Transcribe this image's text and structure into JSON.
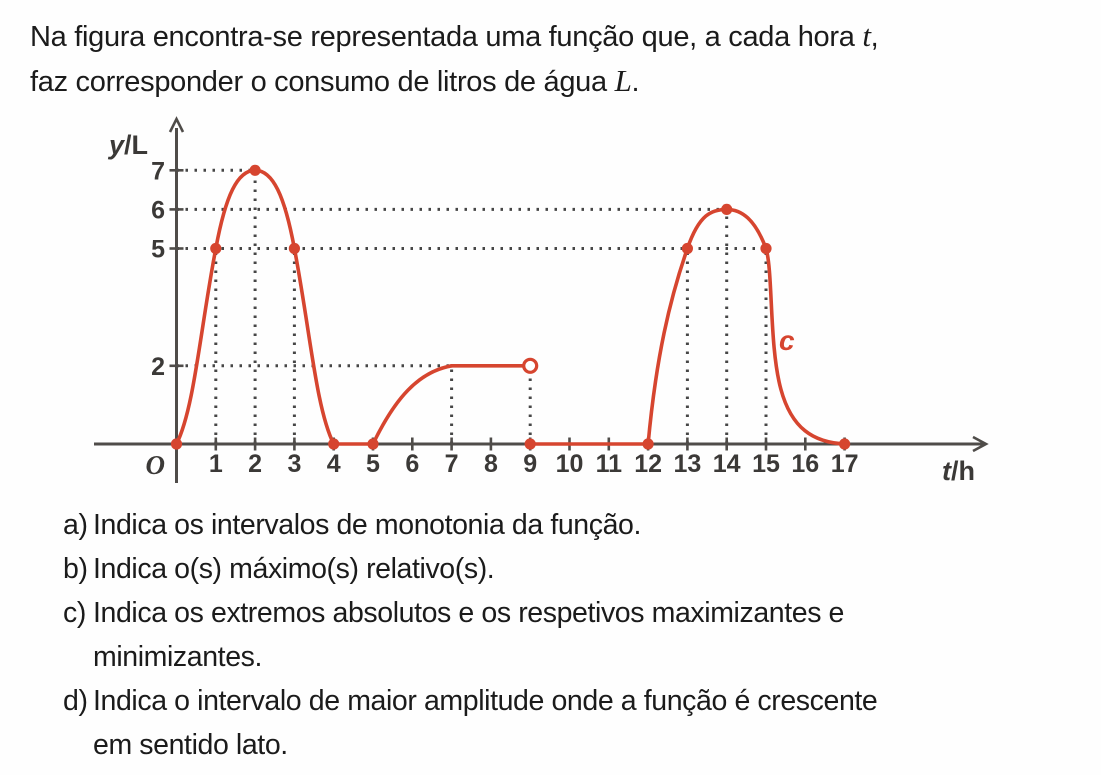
{
  "intro": {
    "line1_pre": "Na figura encontra-se representada uma função que, a cada hora ",
    "var1": "t",
    "line1_post": ",",
    "line2_pre": "faz corresponder o consumo de litros de água ",
    "var2": "L",
    "line2_post": "."
  },
  "questions": [
    {
      "label": "a)",
      "lines": [
        "Indica os intervalos de monotonia da função."
      ]
    },
    {
      "label": "b)",
      "lines": [
        "Indica o(s) máximo(s) relativo(s)."
      ]
    },
    {
      "label": "c)",
      "lines": [
        "Indica os extremos absolutos e os respetivos maximizantes e",
        "minimizantes."
      ]
    },
    {
      "label": "d)",
      "lines": [
        "Indica o intervalo de maior amplitude onde a função é crescente",
        "em sentido lato."
      ]
    }
  ],
  "chart_data": {
    "type": "line",
    "title": "",
    "xlabel_var": "t",
    "xlabel_rest": "/h",
    "ylabel_var": "y",
    "ylabel_rest": "/L",
    "origin_label": "O",
    "curve_label": "c",
    "x_ticks": [
      1,
      2,
      3,
      4,
      5,
      6,
      7,
      8,
      9,
      10,
      11,
      12,
      13,
      14,
      15,
      16,
      17
    ],
    "y_ticks": [
      2,
      5,
      6,
      7
    ],
    "xlim": [
      0,
      18
    ],
    "ylim": [
      0,
      8
    ],
    "grid": "dotted-guides-only",
    "legend": "none",
    "segments": [
      {
        "shape": "bell",
        "points": [
          [
            0,
            0
          ],
          [
            1,
            5
          ],
          [
            2,
            7
          ],
          [
            3,
            5
          ],
          [
            4,
            0
          ]
        ]
      },
      {
        "shape": "line",
        "points": [
          [
            4,
            0
          ],
          [
            5,
            0
          ]
        ]
      },
      {
        "shape": "saturate",
        "points": [
          [
            5,
            0
          ],
          [
            7,
            2
          ]
        ]
      },
      {
        "shape": "line",
        "points": [
          [
            7,
            2
          ],
          [
            9,
            2
          ]
        ],
        "open_end": true
      },
      {
        "shape": "line",
        "points": [
          [
            9,
            0
          ],
          [
            12,
            0
          ]
        ]
      },
      {
        "shape": "bell-decay",
        "points": [
          [
            12,
            0
          ],
          [
            13,
            5
          ],
          [
            14,
            6
          ],
          [
            15,
            5
          ],
          [
            17,
            0
          ]
        ]
      }
    ],
    "marked_points": [
      [
        0,
        0
      ],
      [
        1,
        5
      ],
      [
        2,
        7
      ],
      [
        3,
        5
      ],
      [
        4,
        0
      ],
      [
        5,
        0
      ],
      [
        9,
        0
      ],
      [
        12,
        0
      ],
      [
        13,
        5
      ],
      [
        14,
        6
      ],
      [
        15,
        5
      ],
      [
        17,
        0
      ]
    ],
    "open_point": [
      9,
      2
    ],
    "guides": {
      "horizontal": [
        {
          "y": 7,
          "to_x": 2
        },
        {
          "y": 6,
          "to_x": 14
        },
        {
          "y": 5,
          "to_x": 15
        },
        {
          "y": 2,
          "to_x": 7
        }
      ],
      "vertical": [
        {
          "x": 1,
          "to_y": 5
        },
        {
          "x": 2,
          "to_y": 7
        },
        {
          "x": 3,
          "to_y": 5
        },
        {
          "x": 7,
          "to_y": 2
        },
        {
          "x": 9,
          "to_y": 2
        },
        {
          "x": 13,
          "to_y": 5
        },
        {
          "x": 14,
          "to_y": 6
        },
        {
          "x": 15,
          "to_y": 5
        }
      ]
    },
    "colors": {
      "curve": "#d6452f",
      "axis": "#4f4c49",
      "guides": "#464646",
      "labels": "#3b3937"
    }
  }
}
